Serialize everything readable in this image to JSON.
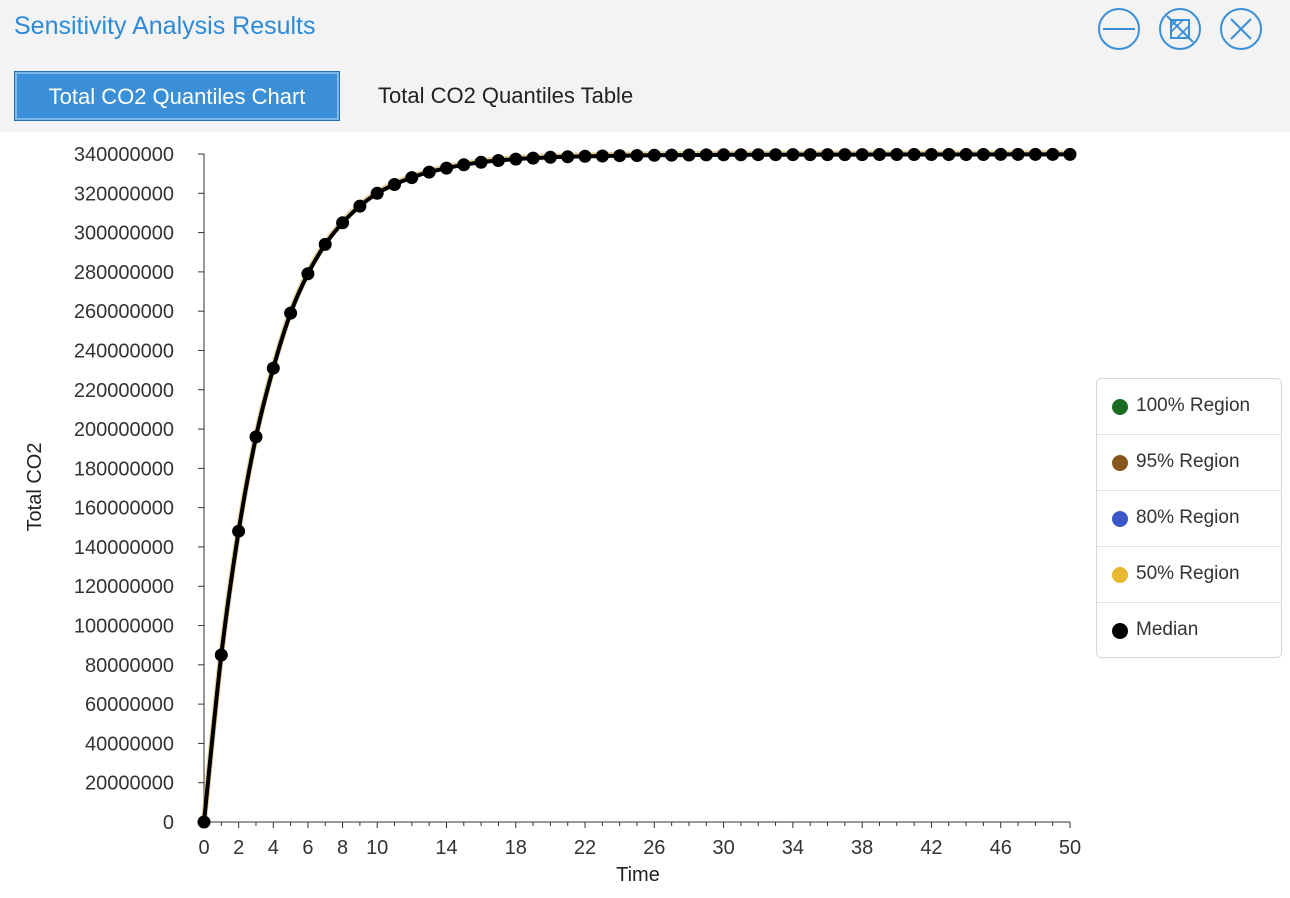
{
  "header": {
    "title": "Sensitivity Analysis Results",
    "title_color": "#2d8ad8",
    "window_controls": [
      {
        "icon": "minimize-icon"
      },
      {
        "icon": "restore-icon"
      },
      {
        "icon": "close-icon"
      }
    ]
  },
  "tabs": [
    {
      "label": "Total CO2 Quantiles Chart",
      "active": true
    },
    {
      "label": "Total CO2 Quantiles Table",
      "active": false
    }
  ],
  "legend": [
    {
      "label": "100% Region",
      "color": "#1a6e24"
    },
    {
      "label": "95% Region",
      "color": "#86561a"
    },
    {
      "label": "80% Region",
      "color": "#3a58c8"
    },
    {
      "label": "50% Region",
      "color": "#e8b830"
    },
    {
      "label": "Median",
      "color": "#000000"
    }
  ],
  "chart_data": {
    "type": "line",
    "title": "",
    "xlabel": "Time",
    "ylabel": "Total CO2",
    "xlim": [
      0,
      50
    ],
    "ylim": [
      0,
      340000000
    ],
    "x_ticks": [
      0,
      2,
      4,
      6,
      8,
      10,
      14,
      18,
      22,
      26,
      30,
      34,
      38,
      42,
      46,
      50
    ],
    "y_ticks": [
      0,
      20000000,
      40000000,
      60000000,
      80000000,
      100000000,
      120000000,
      140000000,
      160000000,
      180000000,
      200000000,
      220000000,
      240000000,
      260000000,
      280000000,
      300000000,
      320000000,
      340000000
    ],
    "y_tick_labels": [
      "0",
      "20000000",
      "40000000",
      "60000000",
      "80000000",
      "100000000",
      "120000000",
      "140000000",
      "160000000",
      "180000000",
      "200000000",
      "220000000",
      "240000000",
      "260000000",
      "280000000",
      "300000000",
      "320000000",
      "340000000"
    ],
    "x": [
      0,
      1,
      2,
      3,
      4,
      5,
      6,
      7,
      8,
      9,
      10,
      11,
      12,
      13,
      14,
      15,
      16,
      17,
      18,
      19,
      20,
      21,
      22,
      23,
      24,
      25,
      26,
      27,
      28,
      29,
      30,
      31,
      32,
      33,
      34,
      35,
      36,
      37,
      38,
      39,
      40,
      41,
      42,
      43,
      44,
      45,
      46,
      47,
      48,
      49,
      50
    ],
    "series": [
      {
        "name": "Median",
        "color": "#000000",
        "values": [
          0,
          85000000,
          148000000,
          196000000,
          231000000,
          259000000,
          279000000,
          294000000,
          305000000,
          313500000,
          320000000,
          324500000,
          328000000,
          330800000,
          332800000,
          334500000,
          335800000,
          336700000,
          337400000,
          337900000,
          338300000,
          338600000,
          338850000,
          339000000,
          339150000,
          339250000,
          339350000,
          339420000,
          339480000,
          339530000,
          339570000,
          339600000,
          339630000,
          339650000,
          339670000,
          339690000,
          339700000,
          339710000,
          339720000,
          339730000,
          339740000,
          339750000,
          339755000,
          339760000,
          339765000,
          339770000,
          339775000,
          339780000,
          339785000,
          339790000,
          339795000
        ]
      }
    ],
    "grid": false,
    "legend_position": "right"
  }
}
